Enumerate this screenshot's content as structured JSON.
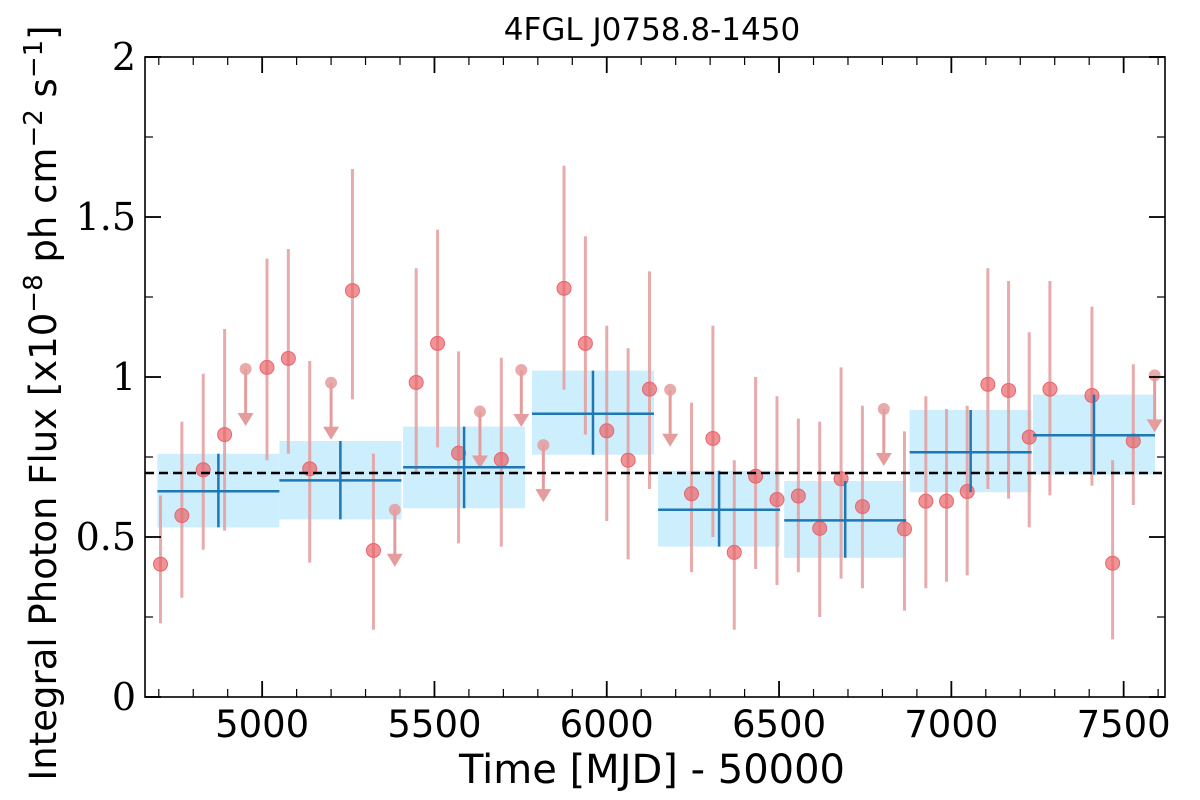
{
  "chart_data": {
    "type": "scatter",
    "title": "4FGL J0758.8-1450",
    "xlabel": "Time [MJD] - 50000",
    "ylabel": "Integral Photon Flux [x10",
    "ylabel_exp1": "−8",
    "ylabel_mid": " ph cm",
    "ylabel_exp2": "−2",
    "ylabel_s": " s",
    "ylabel_exp3": "−1",
    "ylabel_end": "]",
    "xlim": [
      4660,
      7620
    ],
    "ylim": [
      0,
      2
    ],
    "xticks": [
      5000,
      5500,
      6000,
      6500,
      7000,
      7500
    ],
    "xtick_labels": [
      "5000",
      "5500",
      "6000",
      "6500",
      "7000",
      "7500"
    ],
    "yticks": [
      0,
      0.5,
      1,
      1.5,
      2
    ],
    "ytick_labels": [
      "0",
      "0.5",
      "1",
      "1.5",
      "2"
    ],
    "average_flux": 0.7,
    "colors": {
      "points": "#e8656b",
      "errorbars": "#e49c9c",
      "bins": "#1f77b4",
      "bin_band": "#cdeefc",
      "average": "#000000"
    },
    "series": [
      {
        "type": "detections",
        "x": [
          4705,
          4767,
          4829,
          4891,
          5014,
          5076,
          5138,
          5262,
          5323,
          5447,
          5509,
          5570,
          5694,
          5876,
          5938,
          6000,
          6062,
          6124,
          6246,
          6308,
          6370,
          6432,
          6494,
          6556,
          6618,
          6680,
          6742,
          6864,
          6926,
          6986,
          7046,
          7106,
          7166,
          7226,
          7286,
          7408,
          7468,
          7528
        ],
        "y": [
          0.415,
          0.567,
          0.71,
          0.82,
          1.03,
          1.058,
          0.713,
          1.27,
          0.458,
          0.983,
          1.105,
          0.762,
          0.742,
          1.277,
          1.105,
          0.832,
          0.74,
          0.962,
          0.635,
          0.808,
          0.452,
          0.69,
          0.617,
          0.628,
          0.527,
          0.682,
          0.595,
          0.525,
          0.612,
          0.612,
          0.642,
          0.977,
          0.958,
          0.812,
          0.962,
          0.942,
          0.418,
          0.8
        ],
        "yerr_low": [
          0.23,
          0.31,
          0.46,
          0.52,
          0.74,
          0.76,
          0.42,
          0.93,
          0.21,
          0.7,
          0.78,
          0.48,
          0.47,
          0.96,
          0.82,
          0.55,
          0.43,
          0.65,
          0.39,
          0.5,
          0.21,
          0.4,
          0.35,
          0.39,
          0.25,
          0.37,
          0.34,
          0.27,
          0.34,
          0.36,
          0.38,
          0.65,
          0.62,
          0.53,
          0.63,
          0.66,
          0.18,
          0.6
        ],
        "yerr_high": [
          0.63,
          0.86,
          1.01,
          1.15,
          1.37,
          1.4,
          1.05,
          1.65,
          0.76,
          1.34,
          1.46,
          1.08,
          1.06,
          1.66,
          1.44,
          1.16,
          1.09,
          1.33,
          0.92,
          1.16,
          0.74,
          1.0,
          0.94,
          0.87,
          0.86,
          1.03,
          0.91,
          0.83,
          0.94,
          0.9,
          0.91,
          1.34,
          1.3,
          1.14,
          1.3,
          1.22,
          0.74,
          1.04
        ]
      },
      {
        "type": "upper_limits",
        "x": [
          4952,
          5200,
          5385,
          5632,
          5752,
          5816,
          6184,
          6804,
          7590
        ],
        "y": [
          1.025,
          0.982,
          0.585,
          0.892,
          1.022,
          0.787,
          0.96,
          0.9,
          1.005
        ]
      },
      {
        "type": "bins",
        "x": [
          4873,
          5227,
          5586,
          5960,
          6326,
          6692,
          7056,
          7414
        ],
        "xerr": [
          177,
          177,
          177,
          177,
          177,
          177,
          177,
          177
        ],
        "y": [
          0.643,
          0.677,
          0.718,
          0.885,
          0.585,
          0.552,
          0.765,
          0.818
        ],
        "y_low": [
          0.53,
          0.555,
          0.59,
          0.757,
          0.47,
          0.435,
          0.64,
          0.695
        ],
        "y_high": [
          0.76,
          0.8,
          0.845,
          1.02,
          0.707,
          0.675,
          0.897,
          0.945
        ]
      }
    ]
  }
}
